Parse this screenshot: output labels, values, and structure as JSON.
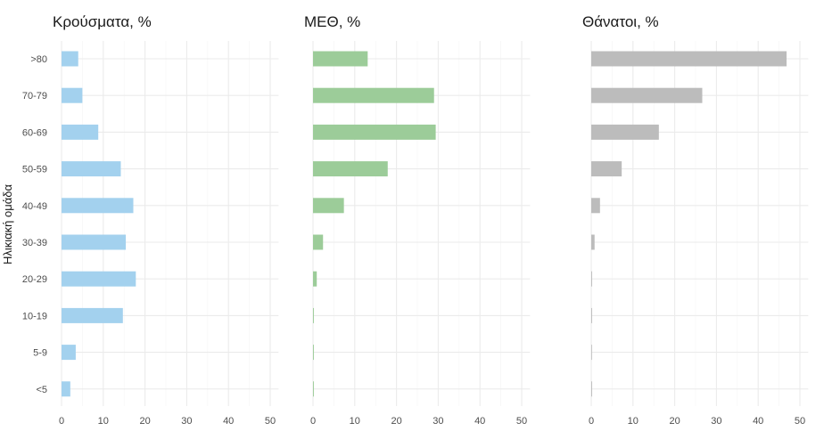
{
  "chart_data": {
    "type": "bar",
    "orientation": "horizontal",
    "ylabel": "Ηλικιακή ομάδα",
    "categories": [
      ">80",
      "70-79",
      "60-69",
      "50-59",
      "40-49",
      "30-39",
      "20-29",
      "10-19",
      "5-9",
      "<5"
    ],
    "xlim": [
      0,
      52
    ],
    "xticks": [
      0,
      10,
      20,
      30,
      40,
      50
    ],
    "grid": true,
    "panels": [
      {
        "title": "Κρούσματα, %",
        "color": "#a3d1ee",
        "values": [
          4.0,
          5.0,
          8.8,
          14.2,
          17.2,
          15.4,
          17.8,
          14.7,
          3.4,
          2.1
        ]
      },
      {
        "title": "ΜΕΘ, %",
        "color": "#9ccc99",
        "values": [
          13.1,
          29.0,
          29.4,
          17.9,
          7.4,
          2.4,
          0.9,
          0.2,
          0.2,
          0.2
        ]
      },
      {
        "title": "Θάνατοι, %",
        "color": "#bcbcbc",
        "values": [
          46.8,
          26.6,
          16.2,
          7.3,
          2.1,
          0.8,
          0.2,
          0.2,
          0.05,
          0.2
        ]
      }
    ]
  }
}
